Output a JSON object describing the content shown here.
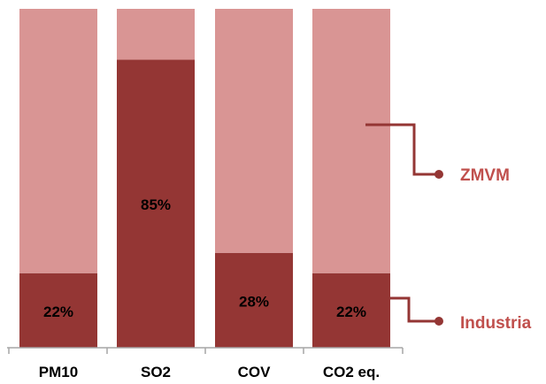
{
  "chart_data": {
    "type": "bar",
    "stacked": true,
    "percent_stacked": true,
    "categories": [
      "PM10",
      "SO2",
      "COV",
      "CO2 eq."
    ],
    "series": [
      {
        "name": "Industria",
        "values": [
          22,
          85,
          28,
          22
        ],
        "labels": [
          "22%",
          "85%",
          "28%",
          "22%"
        ]
      },
      {
        "name": "ZMVM",
        "values": [
          78,
          15,
          72,
          78
        ]
      }
    ],
    "ylim": [
      0,
      100
    ],
    "grid": false,
    "legend_placement": "right",
    "colors": {
      "Industria": "#943634",
      "ZMVM": "#d99594",
      "axis": "#a6a6a6",
      "label_text": "#000000",
      "legend_text": "#c0504d"
    }
  }
}
